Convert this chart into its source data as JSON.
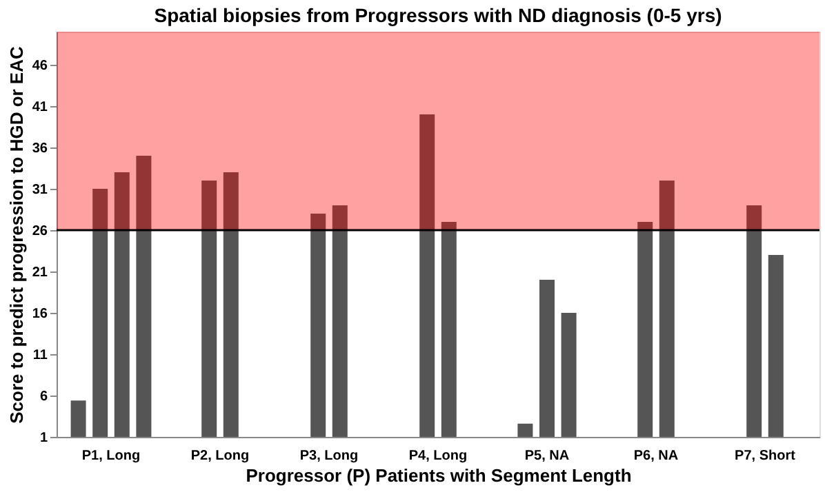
{
  "chart_data": {
    "type": "bar",
    "title": "Spatial biopsies from Progressors with ND diagnosis (0-5 yrs)",
    "xlabel": "Progressor (P) Patients with Segment Length",
    "ylabel": "Score to predict progression to HGD or EAC",
    "categories": [
      "P1, Long",
      "P2, Long",
      "P3, Long",
      "P4, Long",
      "P5, NA",
      "P6, NA",
      "P7, Short"
    ],
    "series": [
      {
        "color": "#555555",
        "values": [
          5.4,
          32,
          28,
          40,
          2.6,
          27,
          29
        ]
      },
      {
        "color": "#555555",
        "values": [
          31,
          33,
          29,
          27,
          20,
          32,
          23
        ]
      },
      {
        "color": "#555555",
        "values": [
          33,
          null,
          null,
          null,
          16,
          null,
          null
        ]
      },
      {
        "color": "#555555",
        "values": [
          35,
          null,
          null,
          null,
          null,
          null,
          null
        ]
      }
    ],
    "ylim": [
      1,
      50
    ],
    "yticks": [
      1,
      6,
      11,
      16,
      21,
      26,
      31,
      36,
      41,
      46
    ],
    "bands": [
      {
        "axis": "y",
        "from": 26,
        "to": 50,
        "color": "#ff0000"
      }
    ],
    "ref_lines": [
      {
        "axis": "y",
        "value": 26,
        "color": "#000000"
      }
    ],
    "grid": false
  }
}
